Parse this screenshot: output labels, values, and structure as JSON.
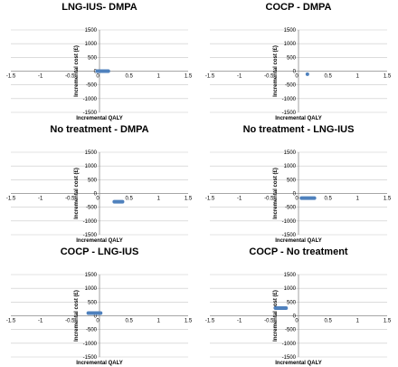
{
  "chart_data": [
    {
      "type": "scatter",
      "title": "LNG-IUS- DMPA",
      "xlabel": "Incremental QALY",
      "ylabel": "Incremental cost (£)",
      "xlim": [
        -1.5,
        1.5
      ],
      "ylim": [
        -1500,
        1500
      ],
      "xticks": [
        "-1.5",
        "-1",
        "-0.5",
        "0",
        "0.5",
        "1",
        "1.5"
      ],
      "yticks": [
        "1500",
        "1000",
        "500",
        "0",
        "-500",
        "-1000",
        "-1500"
      ],
      "xtick_values": [
        -1.5,
        -1,
        -0.5,
        0,
        0.5,
        1,
        1.5
      ],
      "ytick_values": [
        1500,
        1000,
        500,
        0,
        -500,
        -1000,
        -1500
      ],
      "grid": true,
      "series": [
        {
          "x_range": [
            -0.07,
            0.18
          ],
          "y_range": [
            -20,
            20
          ],
          "color": "#4f81bd"
        }
      ]
    },
    {
      "type": "scatter",
      "title": "COCP - DMPA",
      "xlabel": "Incremental QALY",
      "ylabel": "Incremental cost (£)",
      "xlim": [
        -1.5,
        1.5
      ],
      "ylim": [
        -1500,
        1500
      ],
      "xticks": [
        "-1.5",
        "-1",
        "-0.5",
        "0",
        "0.5",
        "1",
        "1.5"
      ],
      "yticks": [
        "1500",
        "1000",
        "500",
        "0",
        "-500",
        "-1000",
        "-1500"
      ],
      "xtick_values": [
        -1.5,
        -1,
        -0.5,
        0,
        0.5,
        1,
        1.5
      ],
      "ytick_values": [
        1500,
        1000,
        500,
        0,
        -500,
        -1000,
        -1500
      ],
      "grid": true,
      "series": [
        {
          "x_range": [
            0.12,
            0.17
          ],
          "y_range": [
            -140,
            -80
          ],
          "color": "#4f81bd"
        }
      ]
    },
    {
      "type": "scatter",
      "title": "No treatment - DMPA",
      "xlabel": "Incremental QALY",
      "ylabel": "Incremental cost (£)",
      "xlim": [
        -1.5,
        1.5
      ],
      "ylim": [
        -1500,
        1500
      ],
      "xticks": [
        "-1.5",
        "-1",
        "-0.5",
        "0",
        "0.5",
        "1",
        "1.5"
      ],
      "yticks": [
        "1500",
        "1000",
        "500",
        "0",
        "-500",
        "-1000",
        "-1500"
      ],
      "xtick_values": [
        -1.5,
        -1,
        -0.5,
        0,
        0.5,
        1,
        1.5
      ],
      "ytick_values": [
        1500,
        1000,
        500,
        0,
        -500,
        -1000,
        -1500
      ],
      "grid": true,
      "series": [
        {
          "x_range": [
            0.22,
            0.42
          ],
          "y_range": [
            -330,
            -270
          ],
          "color": "#4f81bd"
        }
      ]
    },
    {
      "type": "scatter",
      "title": "No treatment - LNG-IUS",
      "xlabel": "Incremental QALY",
      "ylabel": "Incremental cost (£)",
      "xlim": [
        -1.5,
        1.5
      ],
      "ylim": [
        -1500,
        1500
      ],
      "xticks": [
        "-1.5",
        "-1",
        "-0.5",
        "0",
        "0.5",
        "1",
        "1.5"
      ],
      "yticks": [
        "1500",
        "1000",
        "500",
        "0",
        "-500",
        "-1000",
        "-1500"
      ],
      "xtick_values": [
        -1.5,
        -1,
        -0.5,
        0,
        0.5,
        1,
        1.5
      ],
      "ytick_values": [
        1500,
        1000,
        500,
        0,
        -500,
        -1000,
        -1500
      ],
      "grid": true,
      "series": [
        {
          "x_range": [
            0.02,
            0.3
          ],
          "y_range": [
            -190,
            -150
          ],
          "color": "#4f81bd"
        }
      ]
    },
    {
      "type": "scatter",
      "title": "COCP - LNG-IUS",
      "xlabel": "Incremental QALY",
      "ylabel": "Incremental cost (£)",
      "xlim": [
        -1.5,
        1.5
      ],
      "ylim": [
        -1500,
        1500
      ],
      "xticks": [
        "-1.5",
        "-1",
        "-0.5",
        "0",
        "0.5",
        "1",
        "1.5"
      ],
      "yticks": [
        "1500",
        "1000",
        "500",
        "0",
        "-500",
        "-1000",
        "-1500"
      ],
      "xtick_values": [
        -1.5,
        -1,
        -0.5,
        0,
        0.5,
        1,
        1.5
      ],
      "ytick_values": [
        1500,
        1000,
        500,
        0,
        -500,
        -1000,
        -1500
      ],
      "grid": true,
      "series": [
        {
          "x_range": [
            -0.22,
            0.05
          ],
          "y_range": [
            70,
            130
          ],
          "color": "#4f81bd"
        }
      ]
    },
    {
      "type": "scatter",
      "title": "COCP - No treatment",
      "xlabel": "Incremental QALY",
      "ylabel": "Incremental cost (£)",
      "xlim": [
        -1.5,
        1.5
      ],
      "ylim": [
        -1500,
        1500
      ],
      "xticks": [
        "-1.5",
        "-1",
        "-0.5",
        "0",
        "0.5",
        "1",
        "1.5"
      ],
      "yticks": [
        "1500",
        "1000",
        "500",
        "0",
        "-500",
        "-1000",
        "-1500"
      ],
      "xtick_values": [
        -1.5,
        -1,
        -0.5,
        0,
        0.5,
        1,
        1.5
      ],
      "ytick_values": [
        1500,
        1000,
        500,
        0,
        -500,
        -1000,
        -1500
      ],
      "grid": true,
      "series": [
        {
          "x_range": [
            -0.42,
            -0.18
          ],
          "y_range": [
            250,
            310
          ],
          "color": "#4f81bd"
        }
      ]
    }
  ]
}
